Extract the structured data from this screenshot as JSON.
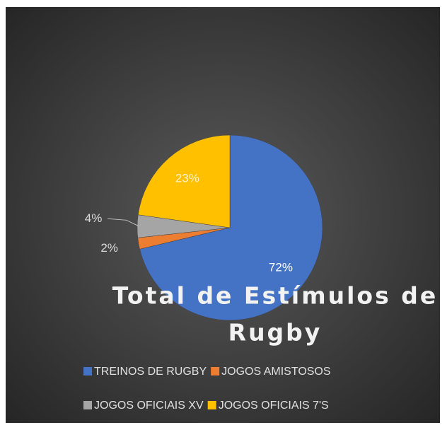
{
  "chart_data": {
    "type": "pie",
    "title": "Total de Estímulos de Rugby",
    "categories": [
      "TREINOS DE RUGBY",
      "JOGOS AMISTOSOS",
      "JOGOS OFICIAIS XV",
      "JOGOS OFICIAIS 7'S"
    ],
    "values": [
      72,
      2,
      4,
      23
    ],
    "value_labels": [
      "72%",
      "2%",
      "4%",
      "23%"
    ],
    "colors": [
      "#4472c4",
      "#ed7d31",
      "#a5a5a5",
      "#ffc000"
    ],
    "legend": "bottom"
  }
}
